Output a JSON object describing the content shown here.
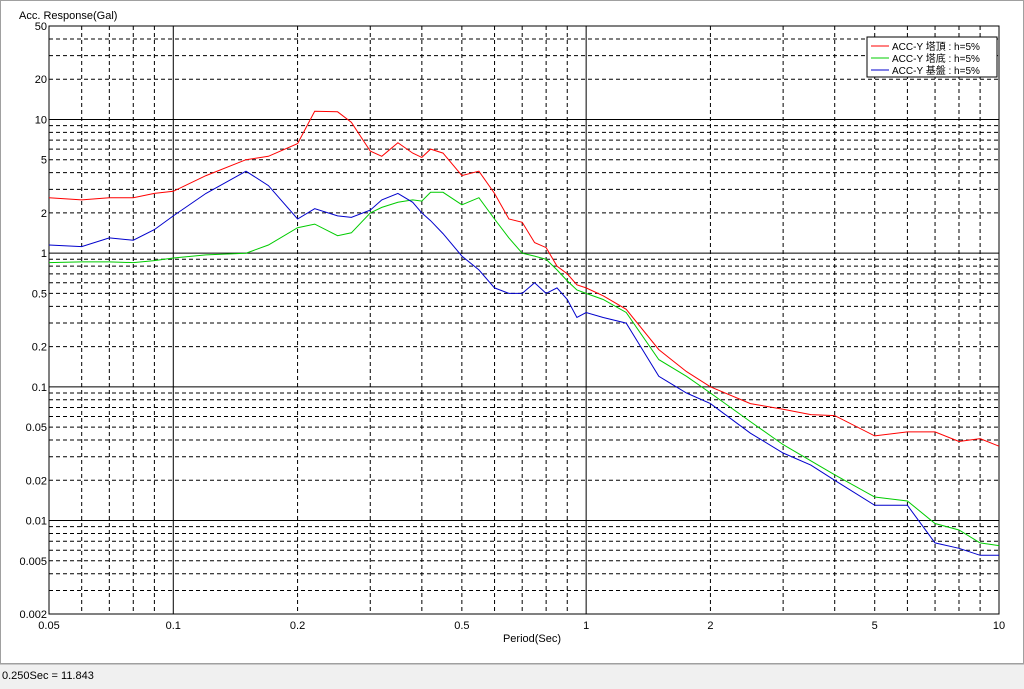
{
  "status": {
    "text": "0.250Sec = 11.843"
  },
  "colors": {
    "background": "#ffffff",
    "series_top": "#ff0000",
    "series_bottom": "#00cc00",
    "series_base": "#0000cc",
    "grid": "#000000"
  },
  "chart_data": {
    "type": "line",
    "title": "",
    "xlabel": "Period(Sec)",
    "ylabel": "Acc. Response(Gal)",
    "x_scale": "log",
    "y_scale": "log",
    "xlim": [
      0.05,
      10
    ],
    "ylim": [
      0.002,
      50
    ],
    "grid": true,
    "legend_position": "top-right",
    "x_tick_labels": [
      {
        "v": 0.05,
        "t": "0.05"
      },
      {
        "v": 0.1,
        "t": "0.1"
      },
      {
        "v": 0.2,
        "t": "0.2"
      },
      {
        "v": 0.5,
        "t": "0.5"
      },
      {
        "v": 1,
        "t": "1"
      },
      {
        "v": 2,
        "t": "2"
      },
      {
        "v": 5,
        "t": "5"
      },
      {
        "v": 10,
        "t": "10"
      }
    ],
    "y_tick_labels": [
      {
        "v": 50,
        "t": "50"
      },
      {
        "v": 20,
        "t": "20"
      },
      {
        "v": 10,
        "t": "10"
      },
      {
        "v": 5,
        "t": "5"
      },
      {
        "v": 2,
        "t": "2"
      },
      {
        "v": 1,
        "t": "1"
      },
      {
        "v": 0.5,
        "t": "0.5"
      },
      {
        "v": 0.2,
        "t": "0.2"
      },
      {
        "v": 0.1,
        "t": "0.1"
      },
      {
        "v": 0.05,
        "t": "0.05"
      },
      {
        "v": 0.02,
        "t": "0.02"
      },
      {
        "v": 0.01,
        "t": "0.01"
      },
      {
        "v": 0.005,
        "t": "0.005"
      },
      {
        "v": 0.002,
        "t": "0.002"
      }
    ],
    "series": [
      {
        "name": "ACC-Y 塔頂 : h=5%",
        "color": "#ff0000",
        "x": [
          0.05,
          0.06,
          0.07,
          0.08,
          0.09,
          0.1,
          0.12,
          0.15,
          0.17,
          0.2,
          0.22,
          0.25,
          0.27,
          0.3,
          0.32,
          0.35,
          0.38,
          0.4,
          0.42,
          0.45,
          0.5,
          0.55,
          0.6,
          0.65,
          0.7,
          0.75,
          0.8,
          0.85,
          0.9,
          0.95,
          1.0,
          1.1,
          1.25,
          1.5,
          1.75,
          2.0,
          2.5,
          3.0,
          3.5,
          4.0,
          5.0,
          6.0,
          7.0,
          8.0,
          9.0,
          10.0
        ],
        "y": [
          2.6,
          2.5,
          2.6,
          2.6,
          2.8,
          2.9,
          3.8,
          5.0,
          5.3,
          6.6,
          11.5,
          11.4,
          9.5,
          5.8,
          5.3,
          6.7,
          5.6,
          5.2,
          6.0,
          5.6,
          3.8,
          4.1,
          2.8,
          1.8,
          1.7,
          1.2,
          1.1,
          0.8,
          0.7,
          0.58,
          0.55,
          0.48,
          0.38,
          0.19,
          0.13,
          0.1,
          0.075,
          0.068,
          0.062,
          0.061,
          0.043,
          0.046,
          0.046,
          0.039,
          0.041,
          0.036
        ]
      },
      {
        "name": "ACC-Y 塔底 : h=5%",
        "color": "#00cc00",
        "x": [
          0.05,
          0.06,
          0.07,
          0.08,
          0.09,
          0.1,
          0.12,
          0.15,
          0.17,
          0.2,
          0.22,
          0.25,
          0.27,
          0.3,
          0.32,
          0.35,
          0.38,
          0.4,
          0.42,
          0.45,
          0.5,
          0.55,
          0.6,
          0.65,
          0.7,
          0.75,
          0.8,
          0.85,
          0.9,
          0.95,
          1.0,
          1.1,
          1.25,
          1.5,
          1.75,
          2.0,
          2.5,
          3.0,
          3.5,
          4.0,
          5.0,
          6.0,
          7.0,
          8.0,
          9.0,
          10.0
        ],
        "y": [
          0.85,
          0.86,
          0.86,
          0.85,
          0.88,
          0.92,
          0.97,
          1.0,
          1.15,
          1.55,
          1.65,
          1.35,
          1.42,
          2.0,
          2.2,
          2.4,
          2.5,
          2.45,
          2.85,
          2.85,
          2.3,
          2.6,
          1.8,
          1.3,
          1.0,
          0.95,
          0.9,
          0.75,
          0.62,
          0.53,
          0.5,
          0.45,
          0.36,
          0.16,
          0.12,
          0.09,
          0.055,
          0.037,
          0.028,
          0.022,
          0.015,
          0.014,
          0.0095,
          0.0085,
          0.0068,
          0.0065
        ]
      },
      {
        "name": "ACC-Y 基盤 : h=5%",
        "color": "#0000cc",
        "x": [
          0.05,
          0.06,
          0.07,
          0.08,
          0.09,
          0.1,
          0.12,
          0.15,
          0.17,
          0.2,
          0.22,
          0.25,
          0.27,
          0.3,
          0.32,
          0.35,
          0.38,
          0.4,
          0.42,
          0.45,
          0.5,
          0.55,
          0.6,
          0.65,
          0.7,
          0.75,
          0.8,
          0.85,
          0.9,
          0.95,
          1.0,
          1.1,
          1.25,
          1.5,
          1.75,
          2.0,
          2.5,
          3.0,
          3.5,
          4.0,
          5.0,
          6.0,
          7.0,
          8.0,
          9.0,
          10.0
        ],
        "y": [
          1.15,
          1.12,
          1.3,
          1.25,
          1.5,
          1.9,
          2.8,
          4.1,
          3.2,
          1.8,
          2.15,
          1.9,
          1.85,
          2.1,
          2.5,
          2.8,
          2.4,
          2.0,
          1.75,
          1.4,
          0.95,
          0.75,
          0.55,
          0.5,
          0.5,
          0.6,
          0.5,
          0.55,
          0.45,
          0.33,
          0.36,
          0.33,
          0.3,
          0.12,
          0.09,
          0.075,
          0.045,
          0.032,
          0.026,
          0.02,
          0.013,
          0.013,
          0.0068,
          0.0062,
          0.0055,
          0.0055
        ]
      }
    ]
  }
}
